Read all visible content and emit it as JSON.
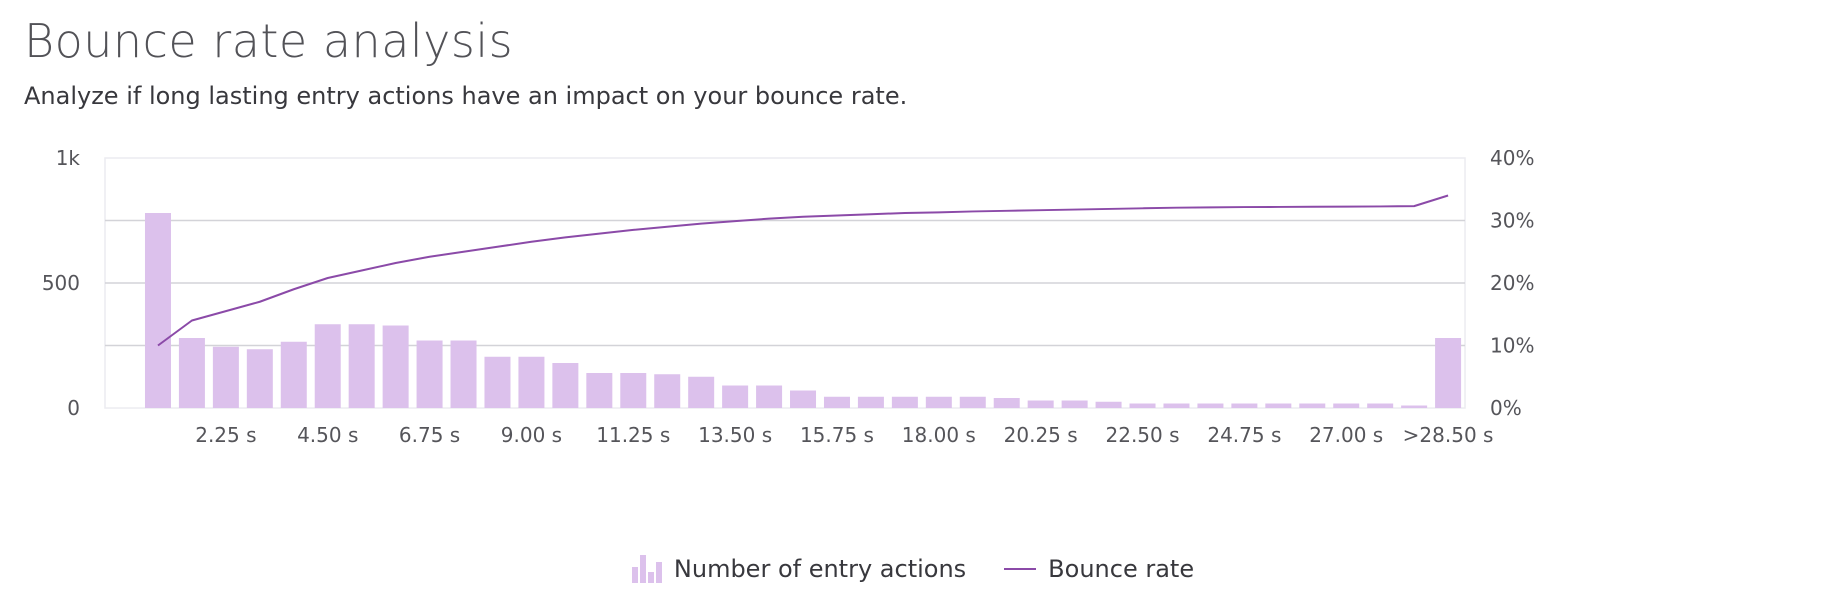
{
  "header": {
    "title": "Bounce rate analysis",
    "subtitle": "Analyze if long lasting entry actions have an impact on your bounce rate."
  },
  "colors": {
    "bar": "#dcc1ec",
    "line": "#8b4aa8",
    "grid": "#d3d3d8",
    "plot_border": "#ececf0",
    "tick_text": "#55555a"
  },
  "chart_data": {
    "type": "bar",
    "title": "",
    "xlabel": "",
    "grid": true,
    "legend_position": "bottom-center",
    "x_tick_labels": [
      "2.25 s",
      "4.50 s",
      "6.75 s",
      "9.00 s",
      "11.25 s",
      "13.50 s",
      "15.75 s",
      "18.00 s",
      "20.25 s",
      "22.50 s",
      "24.75 s",
      "27.00 s",
      ">28.50 s"
    ],
    "y_left": {
      "label": "",
      "ylim": [
        0,
        1000
      ],
      "tick_labels": [
        "0",
        "500",
        "1k"
      ]
    },
    "y_right": {
      "label": "",
      "ylim": [
        0,
        40
      ],
      "unit": "%",
      "tick_labels": [
        "0%",
        "10%",
        "20%",
        "30%",
        "40%"
      ]
    },
    "series": [
      {
        "name": "Number of entry actions",
        "type": "bar",
        "axis": "left",
        "values": [
          780,
          280,
          245,
          235,
          265,
          335,
          335,
          330,
          270,
          270,
          205,
          205,
          180,
          140,
          140,
          135,
          125,
          90,
          90,
          70,
          45,
          45,
          45,
          45,
          45,
          40,
          30,
          30,
          25,
          18,
          18,
          18,
          18,
          18,
          18,
          18,
          18,
          10,
          280
        ]
      },
      {
        "name": "Bounce rate",
        "type": "line",
        "axis": "right",
        "values": [
          10,
          14,
          15.5,
          17,
          19,
          20.8,
          22,
          23.2,
          24.2,
          25,
          25.8,
          26.6,
          27.3,
          27.9,
          28.5,
          29,
          29.5,
          29.9,
          30.3,
          30.6,
          30.8,
          31,
          31.2,
          31.3,
          31.45,
          31.55,
          31.65,
          31.75,
          31.85,
          31.95,
          32.05,
          32.1,
          32.15,
          32.17,
          32.2,
          32.22,
          32.25,
          32.3,
          34
        ]
      }
    ]
  }
}
